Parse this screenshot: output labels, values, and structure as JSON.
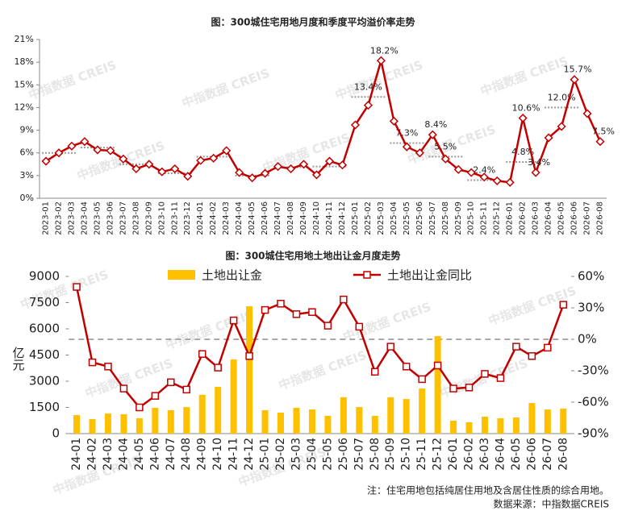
{
  "chart_data": [
    {
      "type": "line",
      "title": "图：300城住宅用地月度和季度平均溢价率走势",
      "categories": [
        "2023-01",
        "2023-02",
        "2023-03",
        "2023-04",
        "2023-05",
        "2023-06",
        "2023-07",
        "2023-08",
        "2023-09",
        "2023-10",
        "2023-11",
        "2023-12",
        "2024-01",
        "2024-02",
        "2024-03",
        "2024-04",
        "2024-05",
        "2024-06",
        "2024-07",
        "2024-08",
        "2024-09",
        "2024-10",
        "2024-11",
        "2024-12",
        "2025-01",
        "2025-02",
        "2025-03",
        "2025-04",
        "2025-05",
        "2025-06",
        "2025-07",
        "2025-08",
        "2025-09",
        "2025-10",
        "2025-11",
        "2025-12",
        "2026-01",
        "2026-02",
        "2026-03",
        "2026-04",
        "2026-05",
        "2026-06",
        "2026-07",
        "2026-08"
      ],
      "series": [
        {
          "color": "#c00000",
          "values": [
            4.9,
            6.0,
            6.9,
            7.5,
            6.4,
            6.3,
            5.2,
            3.9,
            4.5,
            3.5,
            3.9,
            2.9,
            5.0,
            5.3,
            6.3,
            3.4,
            2.7,
            3.3,
            4.2,
            3.9,
            4.5,
            3.1,
            4.9,
            4.4,
            9.7,
            12.3,
            18.2,
            10.2,
            6.8,
            6.0,
            8.4,
            5.2,
            3.8,
            3.4,
            2.8,
            2.3,
            2.1,
            10.6,
            3.4,
            8.0,
            9.5,
            15.7,
            11.2,
            7.5
          ],
          "value_labels": [
            null,
            null,
            null,
            null,
            null,
            null,
            null,
            null,
            null,
            null,
            null,
            null,
            null,
            null,
            null,
            null,
            null,
            null,
            null,
            null,
            null,
            null,
            null,
            null,
            null,
            null,
            "18.2%",
            null,
            null,
            null,
            "8.4%",
            null,
            null,
            null,
            null,
            null,
            null,
            "10.6%",
            "3.4%",
            null,
            null,
            "15.7%",
            null,
            "7.5%"
          ]
        }
      ],
      "quarterly": {
        "color": "#999999",
        "values": [
          6.0,
          6.7,
          4.5,
          3.3,
          5.5,
          3.0,
          4.1,
          4.2,
          13.4,
          7.3,
          5.5,
          2.4,
          4.8,
          12.0
        ],
        "value_labels": [
          null,
          null,
          null,
          null,
          null,
          null,
          null,
          null,
          "13.4%",
          "7.3%",
          "5.5%",
          "2.4%",
          "4.8%",
          "12.0%"
        ]
      },
      "ylim": [
        0,
        21
      ],
      "yticks": [
        {
          "value": 0,
          "label": "0%"
        },
        {
          "value": 3,
          "label": "3%"
        },
        {
          "value": 6,
          "label": "6%"
        },
        {
          "value": 9,
          "label": "9%"
        },
        {
          "value": 12,
          "label": "12%"
        },
        {
          "value": 15,
          "label": "15%"
        },
        {
          "value": 18,
          "label": "18%"
        },
        {
          "value": 21,
          "label": "21%"
        }
      ]
    },
    {
      "type": "bar_line",
      "title": "图：300城住宅用地土地出让金月度走势",
      "y_label": "亿元",
      "categories": [
        "24-01",
        "24-02",
        "24-03",
        "24-04",
        "24-05",
        "24-06",
        "24-07",
        "24-08",
        "24-09",
        "24-10",
        "24-11",
        "24-12",
        "25-01",
        "25-02",
        "25-03",
        "25-04",
        "25-05",
        "25-06",
        "25-07",
        "25-08",
        "25-09",
        "25-10",
        "25-11",
        "25-12",
        "26-01",
        "26-02",
        "26-03",
        "26-04",
        "26-05",
        "26-06",
        "26-07",
        "26-08"
      ],
      "series": [
        {
          "name": "土地出让金",
          "type": "bar",
          "color": "#ffc000",
          "values": [
            1060,
            830,
            1150,
            1110,
            880,
            1480,
            1340,
            1520,
            2220,
            2680,
            4250,
            7290,
            1340,
            1200,
            1480,
            1380,
            1020,
            2080,
            1520,
            1020,
            2080,
            1980,
            2580,
            5580,
            740,
            650,
            970,
            880,
            920,
            1750,
            1380,
            1430
          ]
        },
        {
          "name": "土地出让金同比",
          "type": "line",
          "axis": "y2",
          "color": "#c00000",
          "values": [
            50,
            -22,
            -26,
            -47,
            -65,
            -54,
            -41,
            -48,
            -14,
            -27,
            18,
            -16,
            28,
            34,
            24,
            26,
            13,
            38,
            12,
            -31,
            -7,
            -26,
            -38,
            -25,
            -47,
            -46,
            -33,
            -37,
            -7,
            -16,
            -8,
            33
          ]
        }
      ],
      "ylim": [
        0,
        9000
      ],
      "yticks": [
        0,
        1500,
        3000,
        4500,
        6000,
        7500,
        9000
      ],
      "y2lim": [
        -90,
        60
      ],
      "y2ticks": [
        {
          "value": -90,
          "label": "-90%"
        },
        {
          "value": -60,
          "label": "-60%"
        },
        {
          "value": -30,
          "label": "-30%"
        },
        {
          "value": 0,
          "label": "0%"
        },
        {
          "value": 30,
          "label": "30%"
        },
        {
          "value": 60,
          "label": "60%"
        }
      ]
    }
  ],
  "watermark": "中指数据 CREIS",
  "note": "注：住宅用地包括纯居住用地及含居住性质的综合用地。",
  "source": "数据来源：中指数据CREIS"
}
